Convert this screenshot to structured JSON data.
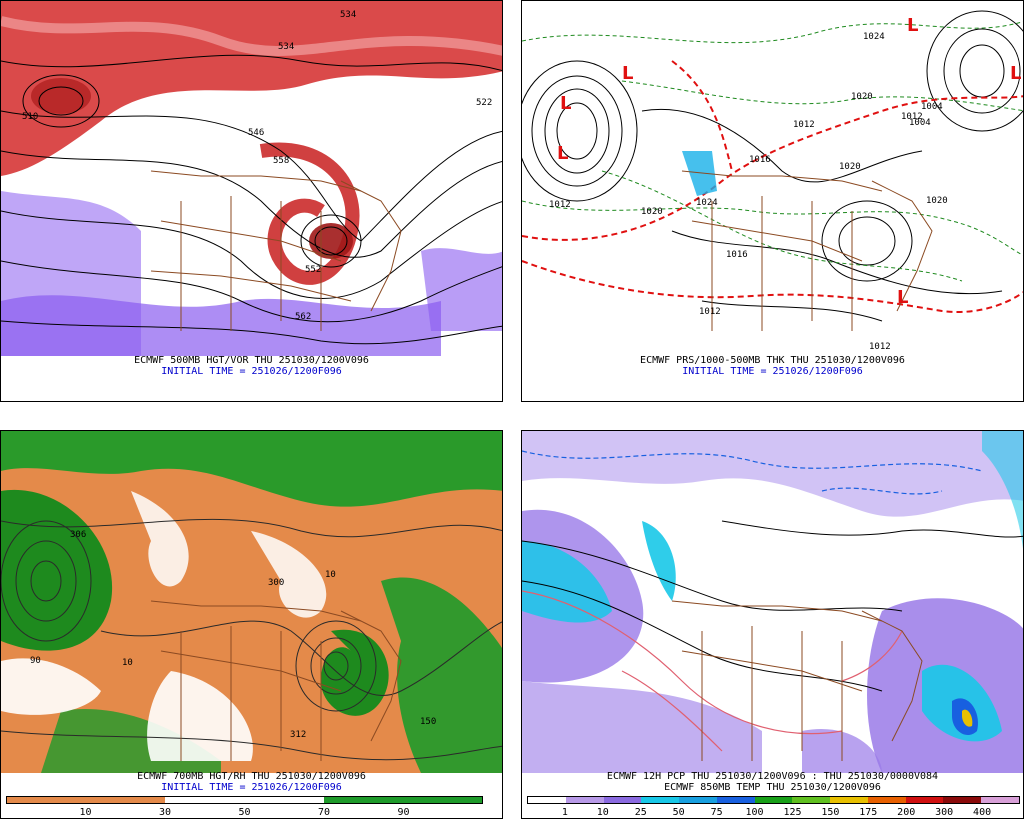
{
  "panels": [
    {
      "caption1": "ECMWF 500MB HGT/VOR THU 251030/1200V096",
      "caption2": "INITIAL TIME = 251026/1200F096",
      "contour_labels": [
        "534",
        "534",
        "522",
        "546",
        "558",
        "552",
        "562",
        "510"
      ]
    },
    {
      "caption1": "ECMWF PRS/1000-500MB THK THU 251030/1200V096",
      "caption2": "INITIAL TIME = 251026/1200F096",
      "contour_labels": [
        "1024",
        "1012",
        "1020",
        "1020",
        "1012",
        "1004",
        "1016",
        "1012",
        "1016",
        "1020",
        "1024",
        "1020",
        "1012",
        "1004",
        "1012"
      ]
    },
    {
      "caption1": "ECMWF 700MB HGT/RH THU 251030/1200V096",
      "caption2": "INITIAL TIME = 251026/1200F096",
      "contour_labels": [
        "300",
        "306",
        "312",
        "10",
        "10",
        "90",
        "150"
      ],
      "colorbar_ticks": [
        "10",
        "30",
        "50",
        "70",
        "90"
      ]
    },
    {
      "caption1": "ECMWF 12H PCP THU 251030/1200V096 : THU 251030/0000V084",
      "caption2": "ECMWF 850MB TEMP THU 251030/1200V096",
      "colorbar_ticks": [
        "1",
        "10",
        "25",
        "50",
        "75",
        "100",
        "125",
        "150",
        "175",
        "200",
        "300",
        "400"
      ]
    }
  ],
  "colors": {
    "vorticity_red": "#d42a2a",
    "vorticity_purple": "#8a5cf0",
    "rh_brown": "#e48a4a",
    "rh_green": "#1e9a2a",
    "pcp_purple": "#9a7ae8",
    "pcp_cyan": "#18c8e8",
    "pcp_blue": "#1860e0",
    "border_brown": "#8b4a22"
  }
}
